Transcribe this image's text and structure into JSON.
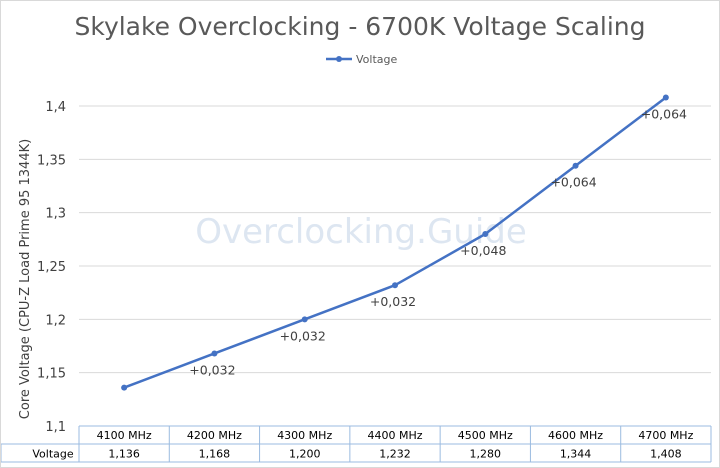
{
  "chart_data": {
    "type": "line",
    "title": "Skylake Overclocking - 6700K Voltage Scaling",
    "ylabel": "Core Voltage (CPU-Z Load Prime 95 1344K)",
    "xlabel": "",
    "watermark": "Overclocking.Guide",
    "categories": [
      "4100 MHz",
      "4200 MHz",
      "4300 MHz",
      "4400 MHz",
      "4500 MHz",
      "4600 MHz",
      "4700 MHz"
    ],
    "series": [
      {
        "name": "Voltage",
        "values": [
          1.136,
          1.168,
          1.2,
          1.232,
          1.28,
          1.344,
          1.408
        ],
        "color": "#4472c4"
      }
    ],
    "table_values": [
      "1,136",
      "1,168",
      "1,200",
      "1,232",
      "1,280",
      "1,344",
      "1,408"
    ],
    "data_labels": [
      "",
      "+0,032",
      "+0,032",
      "+0,032",
      "+0,048",
      "+0,064",
      "+0,064"
    ],
    "ylim": [
      1.1,
      1.4
    ],
    "yticks": [
      "1,1",
      "1,15",
      "1,2",
      "1,25",
      "1,3",
      "1,35",
      "1,4"
    ],
    "legend": "top-center",
    "grid": true
  }
}
